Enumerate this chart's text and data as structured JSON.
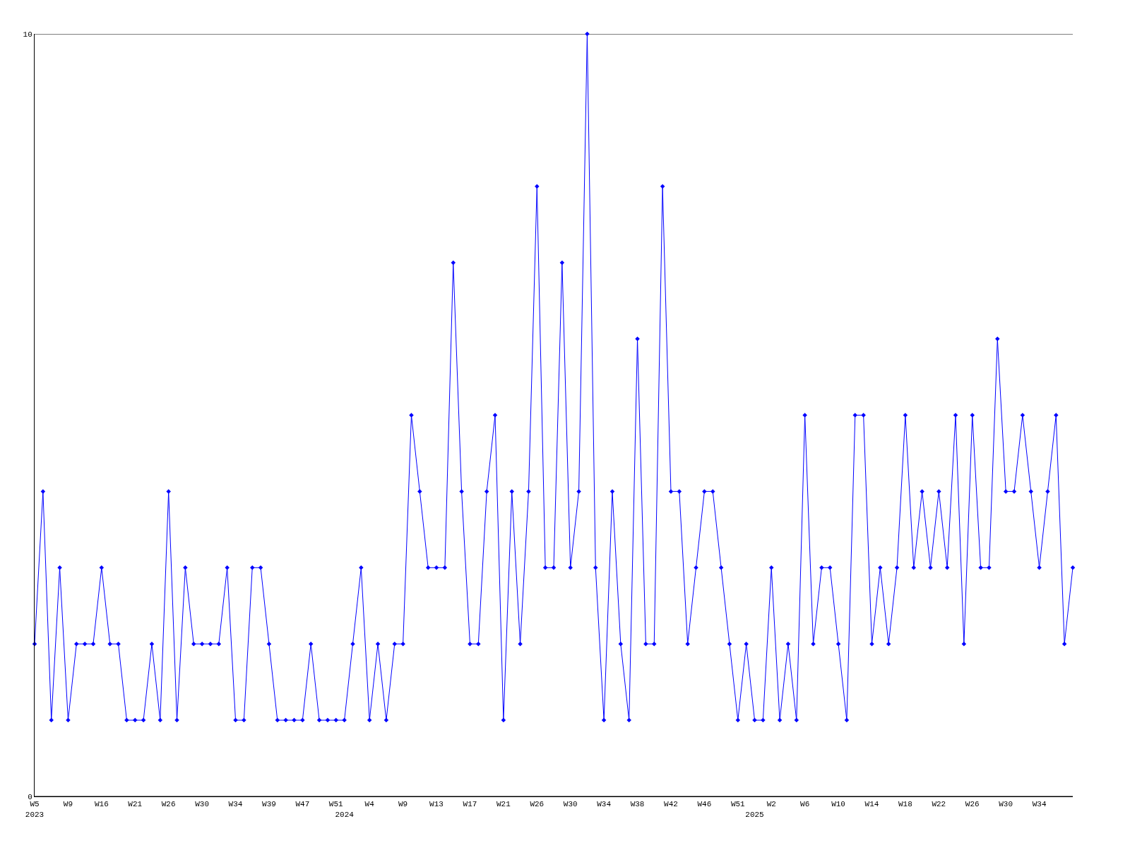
{
  "chart_data": {
    "type": "line",
    "categories": [
      "W5\n2023",
      null,
      null,
      null,
      "W9",
      null,
      null,
      null,
      "W16",
      null,
      null,
      null,
      "W21",
      null,
      null,
      null,
      "W26",
      null,
      null,
      null,
      "W30",
      null,
      null,
      null,
      "W34",
      null,
      null,
      null,
      "W39",
      null,
      null,
      null,
      "W47",
      null,
      null,
      null,
      "W51",
      "\n2024",
      null,
      null,
      "W4",
      null,
      null,
      null,
      "W9",
      null,
      null,
      null,
      "W13",
      null,
      null,
      null,
      "W17",
      null,
      null,
      null,
      "W21",
      null,
      null,
      null,
      "W26",
      null,
      null,
      null,
      "W30",
      null,
      null,
      null,
      "W34",
      null,
      null,
      null,
      "W38",
      null,
      null,
      null,
      "W42",
      null,
      null,
      null,
      "W46",
      null,
      null,
      null,
      "W51",
      null,
      "\n2025",
      null,
      "W2",
      null,
      null,
      null,
      "W6",
      null,
      null,
      null,
      "W10",
      null,
      null,
      null,
      "W14",
      null,
      null,
      null,
      "W18",
      null,
      null,
      null,
      "W22",
      null,
      null,
      null,
      "W26",
      null,
      null,
      null,
      "W30",
      null,
      null,
      null,
      "W34",
      null,
      null,
      null,
      null
    ],
    "series": [
      {
        "color": "#0000ff",
        "values": [
          2,
          4,
          1,
          3,
          1,
          2,
          2,
          2,
          3,
          2,
          2,
          1,
          1,
          1,
          2,
          1,
          4,
          1,
          3,
          2,
          2,
          2,
          2,
          3,
          1,
          1,
          3,
          3,
          2,
          1,
          1,
          1,
          1,
          2,
          1,
          1,
          1,
          1,
          2,
          3,
          1,
          2,
          1,
          2,
          2,
          5,
          4,
          3,
          3,
          3,
          7,
          4,
          2,
          2,
          4,
          5,
          1,
          4,
          2,
          4,
          8,
          3,
          3,
          7,
          3,
          4,
          10,
          3,
          1,
          4,
          2,
          1,
          6,
          2,
          2,
          8,
          4,
          4,
          2,
          3,
          4,
          4,
          3,
          2,
          1,
          2,
          1,
          1,
          3,
          1,
          2,
          1,
          5,
          2,
          3,
          3,
          2,
          1,
          5,
          5,
          2,
          3,
          2,
          3,
          5,
          3,
          4,
          3,
          4,
          3,
          5,
          2,
          5,
          3,
          3,
          6,
          4,
          4,
          5,
          4,
          3,
          4,
          5,
          2,
          3
        ]
      }
    ],
    "ylim": [
      0,
      10
    ],
    "yticks": [
      0,
      10
    ],
    "grid": "y",
    "marker": "diamond",
    "line_style": "solid"
  }
}
